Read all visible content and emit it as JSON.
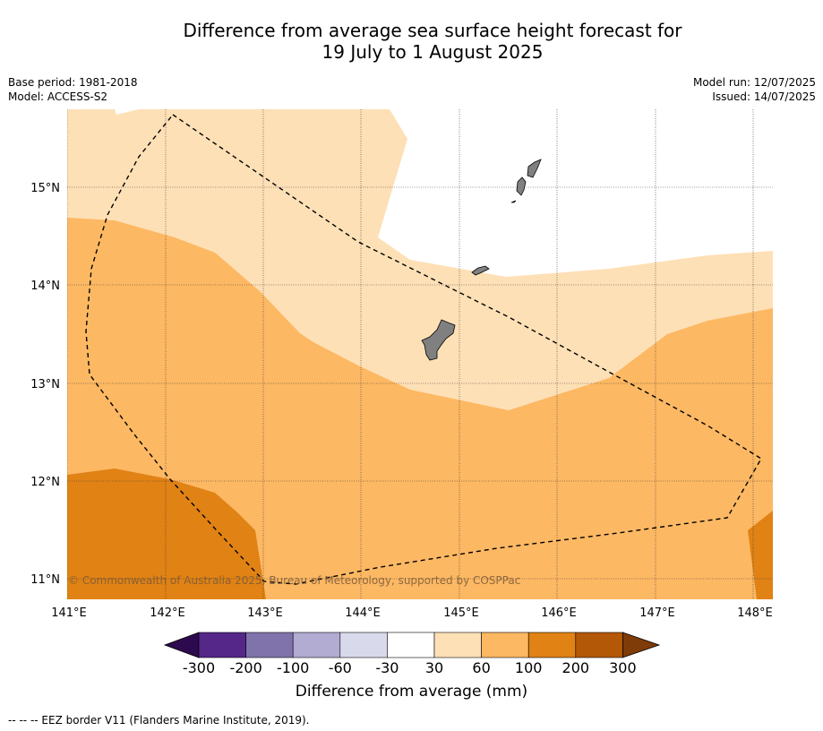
{
  "title_line1": "Difference from average sea surface height forecast for",
  "title_line2": "19 July to 1 August 2025",
  "meta": {
    "base_period": "Base period: 1981-2018",
    "model": "Model: ACCESS-S2",
    "model_run": "Model run: 12/07/2025",
    "issued": "Issued: 14/07/2025"
  },
  "copyright": "© Commonwealth of Australia 2025, Bureau of Meteorology, supported by COSPPac",
  "axes": {
    "lon_ticks": [
      "141°E",
      "142°E",
      "143°E",
      "144°E",
      "145°E",
      "146°E",
      "147°E",
      "148°E"
    ],
    "lat_ticks": [
      "15°N",
      "14°N",
      "13°N",
      "12°N",
      "11°N"
    ]
  },
  "colorbar": {
    "title": "Difference from average (mm)",
    "tick_labels": [
      "-300",
      "-200",
      "-100",
      "-60",
      "-30",
      "30",
      "60",
      "100",
      "200",
      "300"
    ],
    "colors": [
      "#2d0a4e",
      "#542788",
      "#8073ac",
      "#b2abd2",
      "#d8daeb",
      "#ffffff",
      "#fee0b6",
      "#fdb863",
      "#e08214",
      "#b35806",
      "#7f3b08"
    ]
  },
  "footnote": "--  --  -- EEZ border V11 (Flanders Marine Institute, 2019)."
}
